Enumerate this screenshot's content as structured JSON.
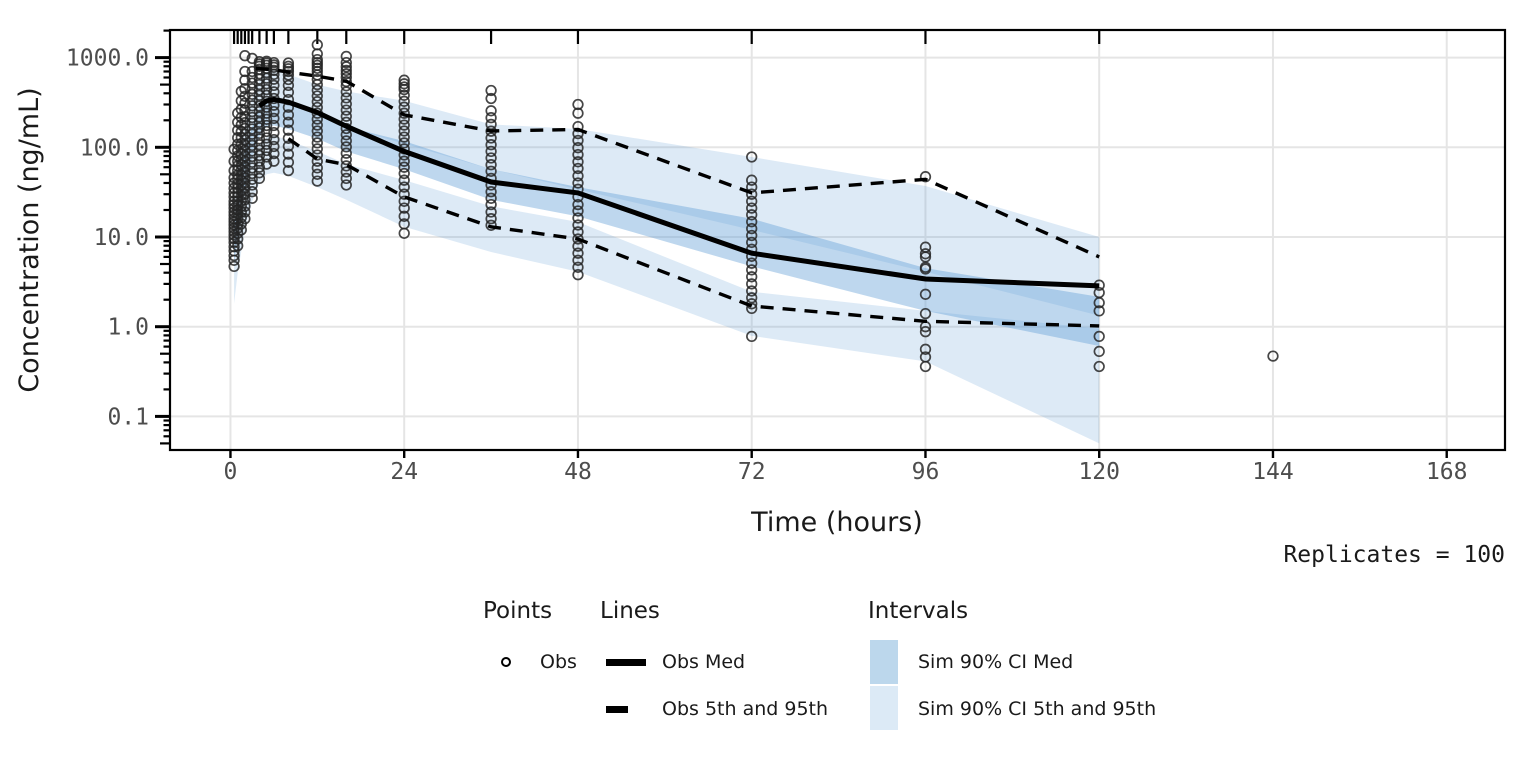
{
  "figure": {
    "xlabel": "Time (hours)",
    "ylabel": "Concentration (ng/mL)",
    "annotation": "Replicates = 100"
  },
  "legend": {
    "points": {
      "header": "Points",
      "items": [
        {
          "label": "Obs",
          "marker": "open-circle"
        }
      ]
    },
    "lines": {
      "header": "Lines",
      "items": [
        {
          "label": "Obs Med",
          "style": "solid"
        },
        {
          "label": "Obs 5th and 95th",
          "style": "dashed"
        }
      ]
    },
    "intervals": {
      "header": "Intervals",
      "items": [
        {
          "label": "Sim 90% CI Med",
          "color": "#bcd7ec"
        },
        {
          "label": "Sim 90% CI 5th and 95th",
          "color": "#dceaf6"
        }
      ]
    }
  },
  "chart_data": {
    "type": "scatter+line+area (visual predictive check)",
    "title": "",
    "xlabel": "Time (hours)",
    "ylabel": "Concentration (ng/mL)",
    "annotation": "Replicates = 100",
    "y_scale": "log10",
    "grid": true,
    "legend_position": "bottom",
    "xlim": [
      -8.35,
      176.05
    ],
    "ylim": [
      0.042,
      2040
    ],
    "x_ticks": [
      0,
      24,
      48,
      72,
      96,
      120,
      144,
      168
    ],
    "y_ticks": [
      {
        "label": "1000.0",
        "value": 1000
      },
      {
        "label": "100.0",
        "value": 100
      },
      {
        "label": "10.0",
        "value": 10
      },
      {
        "label": "1.0",
        "value": 1
      },
      {
        "label": "0.1",
        "value": 0.1
      }
    ],
    "rug_times": [
      0.5,
      1,
      1.5,
      2,
      2.5,
      3,
      4,
      5,
      6,
      8,
      12,
      16,
      24,
      36,
      48,
      72,
      96,
      120
    ],
    "style": {
      "band_color": "#64a0d7",
      "band_alpha_light": 0.22,
      "band_alpha_med": 0.42,
      "line_color": "#000000",
      "point_color": "#262626",
      "grid_color": "#e5e5e5",
      "tick_label_color": "#4d4d4d",
      "panel_border_color": "#000000"
    },
    "series": [
      {
        "name": "Obs Med",
        "style": "solid",
        "x": [
          4,
          5,
          6,
          8,
          12,
          16,
          24,
          36,
          48,
          72,
          96,
          120
        ],
        "y": [
          290,
          330,
          342,
          318,
          245,
          172,
          90,
          41,
          31,
          6.6,
          3.4,
          2.85
        ]
      },
      {
        "name": "Obs 95th",
        "style": "dashed",
        "x": [
          3.5,
          6,
          8,
          12,
          16,
          24,
          36,
          48,
          72,
          96,
          120
        ],
        "y": [
          760,
          730,
          690,
          620,
          545,
          230,
          152,
          158,
          31,
          44,
          6.0
        ]
      },
      {
        "name": "Obs 5th",
        "style": "dashed",
        "x": [
          8,
          12,
          16,
          24,
          36,
          48,
          72,
          96,
          120
        ],
        "y": [
          125,
          74,
          64,
          28,
          13,
          9.5,
          1.7,
          1.15,
          1.02
        ]
      }
    ],
    "bands": [
      {
        "name": "Sim 90% CI 95th",
        "alpha": "light",
        "x": [
          0.5,
          1,
          2,
          3,
          4,
          5,
          6,
          8,
          12,
          16,
          24,
          36,
          48,
          72,
          96,
          120
        ],
        "lo": [
          10,
          22,
          70,
          150,
          250,
          320,
          330,
          300,
          230,
          165,
          110,
          57,
          34,
          12,
          4.1,
          1.33
        ],
        "hi": [
          22,
          50,
          180,
          350,
          560,
          700,
          720,
          650,
          500,
          420,
          330,
          180,
          160,
          78,
          37,
          10
        ]
      },
      {
        "name": "Sim 90% CI 5th",
        "alpha": "light",
        "x": [
          0.5,
          1,
          2,
          3,
          4,
          5,
          6,
          8,
          12,
          16,
          24,
          36,
          48,
          72,
          96,
          120
        ],
        "lo": [
          1.8,
          4,
          12,
          25,
          40,
          50,
          52,
          48,
          36,
          26,
          13,
          6.8,
          4.1,
          0.79,
          0.41,
          0.05
        ],
        "hi": [
          7,
          14,
          40,
          75,
          110,
          130,
          135,
          120,
          90,
          65,
          43,
          22,
          14.7,
          2.45,
          1.5,
          0.95
        ]
      },
      {
        "name": "Sim 90% CI Med",
        "alpha": "med",
        "x": [
          0.5,
          1,
          2,
          3,
          4,
          5,
          6,
          8,
          12,
          16,
          24,
          36,
          48,
          72,
          96,
          120
        ],
        "lo": [
          5,
          11,
          35,
          75,
          130,
          170,
          175,
          160,
          125,
          90,
          57,
          26,
          17,
          4.7,
          1.5,
          0.61
        ],
        "hi": [
          12,
          26,
          90,
          170,
          270,
          330,
          340,
          310,
          240,
          170,
          117,
          57,
          36,
          16,
          4.5,
          2.15
        ]
      }
    ],
    "observations": [
      {
        "t": 0.5,
        "values": [
          4.7,
          5.5,
          6.2,
          7,
          7.8,
          8.7,
          9.6,
          10.5,
          11.5,
          12.5,
          13.6,
          14.8,
          16,
          17.5,
          19,
          21,
          23,
          25,
          28,
          31,
          35,
          40,
          46,
          55,
          70,
          95
        ]
      },
      {
        "t": 1,
        "values": [
          8,
          9.5,
          11,
          12.5,
          14,
          16,
          18,
          20,
          22.5,
          25,
          28,
          31,
          35,
          39,
          44,
          49,
          55,
          62,
          70,
          80,
          92,
          108,
          128,
          155,
          190,
          240
        ]
      },
      {
        "t": 1.5,
        "values": [
          12,
          14,
          16.5,
          19,
          22,
          25,
          29,
          33,
          38,
          43,
          49,
          56,
          64,
          73,
          84,
          96,
          110,
          128,
          150,
          178,
          215,
          265,
          330,
          420
        ]
      },
      {
        "t": 2,
        "values": [
          16,
          19,
          22,
          26,
          30,
          35,
          40,
          46,
          53,
          61,
          70,
          80,
          92,
          106,
          122,
          140,
          162,
          188,
          220,
          260,
          310,
          370,
          450,
          560,
          700,
          1050
        ]
      },
      {
        "t": 3,
        "values": [
          27,
          32,
          38,
          44,
          51,
          59,
          68,
          79,
          91,
          105,
          121,
          140,
          160,
          185,
          215,
          250,
          290,
          335,
          390,
          450,
          520,
          600,
          700,
          980
        ]
      },
      {
        "t": 4,
        "values": [
          45,
          52,
          60,
          70,
          81,
          93,
          107,
          124,
          143,
          165,
          190,
          218,
          250,
          288,
          330,
          380,
          435,
          500,
          575,
          660,
          740,
          800,
          850,
          900
        ]
      },
      {
        "t": 5,
        "values": [
          65,
          78,
          92,
          108,
          127,
          150,
          175,
          205,
          240,
          280,
          325,
          380,
          440,
          510,
          590,
          680,
          760,
          820,
          870,
          910
        ]
      },
      {
        "t": 6,
        "values": [
          70,
          85,
          102,
          122,
          146,
          175,
          210,
          250,
          295,
          350,
          415,
          490,
          575,
          650,
          720,
          780,
          830,
          880
        ]
      },
      {
        "t": 8,
        "values": [
          55,
          68,
          84,
          103,
          126,
          155,
          190,
          230,
          280,
          340,
          410,
          490,
          570,
          640,
          700,
          750,
          800,
          870
        ]
      },
      {
        "t": 12,
        "values": [
          42,
          50,
          59,
          70,
          82,
          96,
          112,
          130,
          152,
          177,
          206,
          240,
          278,
          322,
          373,
          432,
          500,
          570,
          640,
          700,
          760,
          820,
          880,
          950,
          1100,
          1390
        ]
      },
      {
        "t": 16,
        "values": [
          38,
          45,
          53,
          62,
          73,
          86,
          101,
          118,
          138,
          162,
          190,
          222,
          260,
          304,
          355,
          415,
          485,
          540,
          600,
          660,
          720,
          790,
          880,
          1030
        ]
      },
      {
        "t": 24,
        "values": [
          11,
          14,
          17,
          21,
          25,
          30,
          36,
          43,
          51,
          60,
          70,
          82,
          96,
          112,
          130,
          152,
          177,
          206,
          240,
          280,
          326,
          380,
          440,
          470,
          510,
          560
        ]
      },
      {
        "t": 36,
        "values": [
          13.5,
          16,
          19,
          23,
          27,
          32,
          38,
          45,
          54,
          64,
          76,
          90,
          107,
          127,
          151,
          180,
          214,
          255,
          350,
          430
        ]
      },
      {
        "t": 48,
        "values": [
          3.8,
          4.6,
          5.5,
          6.6,
          7.9,
          9.5,
          11.4,
          13.6,
          16.3,
          19.5,
          23,
          28,
          34,
          40,
          48,
          58,
          69,
          83,
          99,
          119,
          142,
          170,
          240,
          300
        ]
      },
      {
        "t": 72,
        "values": [
          0.78,
          1.6,
          1.8,
          2.1,
          2.5,
          3,
          3.6,
          4.3,
          5.1,
          6.1,
          7.3,
          8.7,
          10.4,
          12.4,
          14.8,
          17.7,
          21,
          25,
          30,
          36,
          43,
          78
        ]
      },
      {
        "t": 96,
        "values": [
          0.36,
          0.46,
          0.56,
          0.88,
          1,
          1.4,
          2.3,
          4.4,
          4.6,
          6,
          6.5,
          7.7,
          47
        ]
      },
      {
        "t": 120,
        "values": [
          0.36,
          0.53,
          0.78,
          1.5,
          1.85,
          2.4,
          2.9
        ]
      },
      {
        "t": 144,
        "values": [
          0.47
        ]
      }
    ]
  }
}
